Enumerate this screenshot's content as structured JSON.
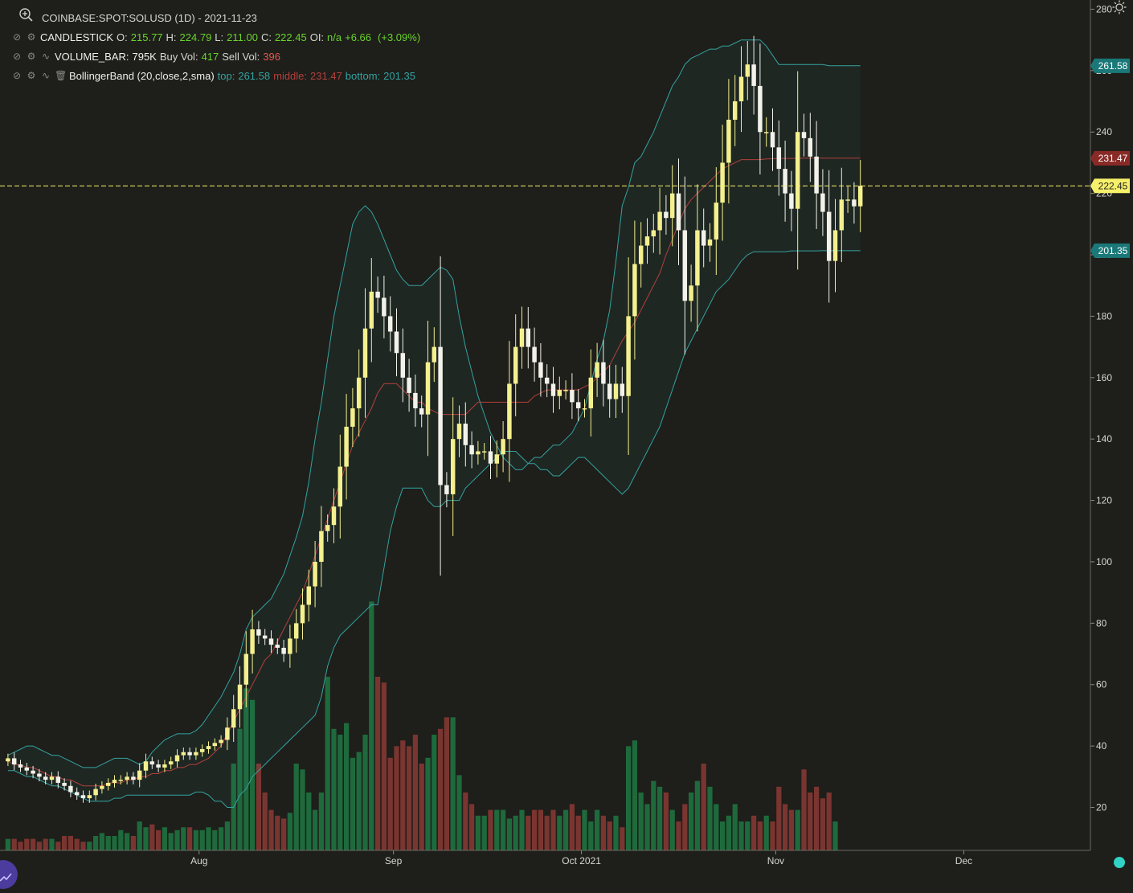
{
  "header": {
    "title": "COINBASE:SPOT:SOLUSD (1D) - 2021-11-23"
  },
  "legend": {
    "candlestick": {
      "label": "CANDLESTICK",
      "o_label": "O:",
      "o": "215.77",
      "h_label": "H:",
      "h": "224.79",
      "l_label": "L:",
      "l": "211.00",
      "c_label": "C:",
      "c": "222.45",
      "oi_label": "OI:",
      "oi": "n/a",
      "change": "+6.66",
      "change_pct": "(+3.09%)"
    },
    "volume": {
      "label": "VOLUME_BAR:",
      "value": "795K",
      "buy_label": "Buy Vol:",
      "buy": "417",
      "sell_label": "Sell Vol:",
      "sell": "396"
    },
    "bollinger": {
      "label": "BollingerBand (20,close,2,sma)",
      "top_label": "top:",
      "top": "261.58",
      "middle_label": "middle:",
      "middle": "231.47",
      "bottom_label": "bottom:",
      "bottom": "201.35"
    }
  },
  "colors": {
    "background": "#1e1e1a",
    "up": "#f4f08e",
    "down": "#f2f2ea",
    "vol_up": "#1e6a3c",
    "vol_down": "#7a3530",
    "band": "#33a3a0",
    "middle": "#b3403b",
    "last_price": "#f7f06a",
    "status_dot": "#30d3c5"
  },
  "icons": [
    "zoom-in-icon",
    "eye-hidden-icon",
    "gear-icon",
    "line-chart-icon",
    "trash-icon",
    "sun-gear-icon",
    "chart-logo-icon"
  ],
  "chart_data": {
    "type": "candlestick",
    "title": "COINBASE:SPOT:SOLUSD (1D) - 2021-11-23",
    "x_tick_labels": [
      "Aug",
      "Sep",
      "Oct 2021",
      "Nov",
      "Dec"
    ],
    "x_ticks": [
      "2021-08-01",
      "2021-09-01",
      "2021-10-01",
      "2021-11-01",
      "2021-12-01"
    ],
    "y_tick_labels": [
      "20",
      "40",
      "60",
      "80",
      "100",
      "120",
      "140",
      "160",
      "180",
      "200",
      "220",
      "240",
      "260",
      "280"
    ],
    "ylim": [
      6,
      283
    ],
    "start_date": "2021-07-01",
    "last_price": 222.45,
    "badges": [
      {
        "label": "261.58",
        "value": 261.58,
        "color": "#1a7878"
      },
      {
        "label": "231.47",
        "value": 231.47,
        "color": "#8a2a26"
      },
      {
        "label": "222.45",
        "value": 222.45,
        "color": "#f7f06a",
        "text_color": "#222"
      },
      {
        "label": "201.35",
        "value": 201.35,
        "color": "#1a7878"
      }
    ],
    "series": [
      {
        "name": "CANDLESTICK",
        "close": [
          36,
          34,
          33,
          32,
          31,
          30,
          29,
          30,
          28,
          27,
          25,
          24,
          23,
          24,
          26,
          27,
          28,
          29,
          29,
          30,
          29,
          32,
          35,
          34,
          33,
          34,
          35,
          37,
          38,
          37,
          38,
          39,
          40,
          41,
          42,
          46,
          52,
          60,
          70,
          78,
          76,
          75,
          73,
          72,
          70,
          75,
          80,
          86,
          92,
          100,
          110,
          112,
          118,
          131,
          144,
          150,
          160,
          176,
          188,
          186,
          180,
          175,
          168,
          160,
          155,
          150,
          148,
          165,
          170,
          125,
          122,
          140,
          145,
          138,
          135,
          136,
          136,
          132,
          135,
          140,
          158,
          170,
          176,
          170,
          165,
          160,
          158,
          154,
          156,
          156,
          152,
          150,
          150,
          160,
          165,
          158,
          153,
          158,
          154,
          180,
          197,
          203,
          206,
          208,
          214,
          212,
          220,
          208,
          185,
          190,
          208,
          203,
          205,
          217,
          230,
          244,
          250,
          258,
          262,
          255,
          240,
          240,
          235,
          228,
          220,
          215,
          240,
          238,
          232,
          220,
          214,
          198,
          208,
          218,
          218,
          215.8,
          222.45
        ]
      },
      {
        "name": "VOLUME_BAR",
        "values": [
          4,
          4,
          3,
          4,
          4,
          3,
          4,
          4,
          3,
          5,
          5,
          4,
          3,
          3,
          5,
          6,
          5,
          5,
          7,
          6,
          5,
          10,
          8,
          9,
          7,
          8,
          6,
          7,
          8,
          8,
          7,
          7,
          8,
          7,
          8,
          10,
          30,
          42,
          56,
          52,
          30,
          20,
          14,
          12,
          11,
          13,
          30,
          28,
          20,
          14,
          20,
          60,
          42,
          40,
          44,
          32,
          34,
          40,
          86,
          60,
          58,
          32,
          36,
          38,
          36,
          40,
          30,
          32,
          40,
          42,
          46,
          46,
          26,
          20,
          16,
          12,
          12,
          14,
          14,
          14,
          11,
          12,
          14,
          12,
          14,
          14,
          12,
          14,
          12,
          14,
          16,
          12,
          14,
          10,
          14,
          12,
          10,
          12,
          8,
          36,
          38,
          20,
          16,
          24,
          22,
          20,
          14,
          10,
          16,
          20,
          24,
          30,
          22,
          16,
          10,
          12,
          16,
          10,
          10,
          12,
          10,
          12,
          10,
          22,
          16,
          14,
          14,
          28,
          20,
          22,
          18,
          20,
          10
        ]
      },
      {
        "name": "BollingerBand top",
        "values": [
          37,
          38,
          39,
          40,
          40,
          39,
          38,
          37,
          37,
          36,
          35,
          34,
          33,
          33,
          33,
          34,
          35,
          36,
          36,
          36,
          35,
          34,
          35,
          38,
          40,
          42,
          43,
          44,
          44,
          44,
          45,
          47,
          50,
          53,
          56,
          60,
          64,
          70,
          78,
          82,
          84,
          86,
          88,
          92,
          96,
          102,
          108,
          115,
          126,
          140,
          152,
          166,
          180,
          190,
          200,
          210,
          214,
          216,
          214,
          210,
          205,
          200,
          195,
          192,
          190,
          190,
          190,
          192,
          194,
          196,
          195,
          192,
          180,
          170,
          162,
          154,
          148,
          142,
          138,
          134,
          132,
          130,
          130,
          132,
          134,
          134,
          136,
          138,
          138,
          140,
          142,
          146,
          150,
          158,
          166,
          172,
          182,
          198,
          216,
          222,
          230,
          232,
          236,
          240,
          245,
          250,
          255,
          258,
          262,
          264,
          265,
          266,
          267,
          267,
          268,
          268,
          269,
          270,
          270,
          270,
          270,
          268,
          265,
          262,
          262,
          262,
          262,
          262,
          262,
          262,
          262,
          261.6,
          261.6,
          261.6,
          261.6,
          261.6,
          261.58
        ]
      },
      {
        "name": "BollingerBand middle",
        "values": [
          35,
          34,
          34,
          33,
          33,
          32,
          31,
          30,
          30,
          29,
          29,
          28,
          27,
          27,
          27,
          27,
          28,
          28,
          28,
          29,
          29,
          30,
          30,
          31,
          31,
          32,
          32,
          33,
          33,
          34,
          34,
          35,
          36,
          38,
          40,
          44,
          48,
          52,
          56,
          60,
          64,
          68,
          70,
          74,
          78,
          82,
          86,
          90,
          96,
          102,
          108,
          114,
          120,
          126,
          132,
          138,
          142,
          146,
          150,
          155,
          158,
          158,
          158,
          156,
          154,
          152,
          152,
          150,
          149,
          148,
          148,
          148,
          148,
          148,
          150,
          152,
          152,
          152,
          152,
          152,
          152,
          152,
          152,
          152,
          154,
          155,
          156,
          156,
          156,
          156,
          156,
          156,
          157,
          158,
          160,
          162,
          164,
          168,
          172,
          175,
          178,
          182,
          186,
          190,
          194,
          200,
          205,
          210,
          215,
          218,
          220,
          222,
          224,
          226,
          228,
          229,
          230,
          231,
          231,
          231,
          231,
          231.2,
          231.3,
          231.4,
          231.4,
          231.4,
          231.45,
          231.47,
          231.47,
          231.47,
          231.47,
          231.47,
          231.47,
          231.47,
          231.47,
          231.47,
          231.47
        ]
      },
      {
        "name": "BollingerBand bottom",
        "values": [
          32,
          32,
          31,
          30,
          30,
          29,
          28,
          27,
          27,
          26,
          25,
          24,
          23,
          22,
          22,
          22,
          22,
          23,
          23,
          24,
          24,
          24,
          24,
          24,
          24,
          24,
          24,
          24,
          24,
          24,
          25,
          25,
          24,
          22,
          22,
          20,
          20,
          24,
          26,
          30,
          32,
          34,
          36,
          38,
          40,
          42,
          44,
          46,
          48,
          50,
          56,
          66,
          72,
          76,
          78,
          80,
          82,
          84,
          86,
          86,
          98,
          110,
          118,
          124,
          124,
          124,
          124,
          120,
          118,
          118,
          120,
          120,
          120,
          124,
          126,
          128,
          130,
          132,
          134,
          136,
          136,
          136,
          134,
          132,
          132,
          130,
          130,
          128,
          128,
          130,
          132,
          134,
          134,
          132,
          130,
          128,
          126,
          124,
          122,
          124,
          128,
          132,
          136,
          140,
          144,
          150,
          156,
          162,
          168,
          172,
          176,
          180,
          184,
          188,
          190,
          192,
          195,
          198,
          200,
          201,
          201,
          201,
          201,
          201,
          201,
          201.3,
          201.3,
          201.3,
          201.3,
          201.3,
          201.35,
          201.35,
          201.35,
          201.35,
          201.35,
          201.35,
          201.35
        ]
      }
    ]
  }
}
